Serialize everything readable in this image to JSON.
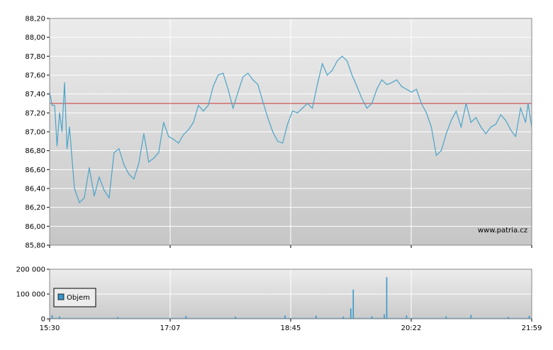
{
  "chart_data": [
    {
      "type": "line",
      "watermark": "www.patria.cz",
      "ylim": [
        85.8,
        88.2
      ],
      "yticks": [
        "88,20",
        "88,00",
        "87,80",
        "87,60",
        "87,40",
        "87,20",
        "87,00",
        "86,80",
        "86,60",
        "86,40",
        "86,20",
        "86,00",
        "85,80"
      ],
      "xticks": [
        "15:30",
        "17:07",
        "18:45",
        "20:22",
        "21:59"
      ],
      "reference_line": 87.3,
      "colors": {
        "line": "#4aa3c8",
        "reference": "#cc3333",
        "grid": "#ffffff"
      },
      "x_minutes": [
        0,
        2,
        4,
        6,
        8,
        10,
        12,
        14,
        16,
        20,
        24,
        28,
        32,
        36,
        40,
        44,
        48,
        52,
        56,
        60,
        64,
        68,
        72,
        76,
        80,
        84,
        88,
        92,
        96,
        100,
        104,
        108,
        112,
        116,
        120,
        124,
        128,
        132,
        136,
        140,
        144,
        148,
        152,
        156,
        160,
        164,
        168,
        172,
        176,
        180,
        184,
        188,
        192,
        196,
        200,
        204,
        208,
        212,
        216,
        220,
        224,
        228,
        232,
        236,
        240,
        244,
        248,
        252,
        256,
        260,
        264,
        268,
        272,
        276,
        280,
        284,
        288,
        292,
        296,
        300,
        304,
        308,
        312,
        316,
        320,
        324,
        328,
        332,
        336,
        340,
        344,
        348,
        352,
        356,
        360,
        364,
        368,
        372,
        376,
        380,
        384,
        386,
        389
      ],
      "series": [
        {
          "values": [
            87.42,
            87.28,
            87.28,
            86.85,
            87.2,
            87.0,
            87.52,
            86.82,
            87.05,
            86.4,
            86.25,
            86.3,
            86.62,
            86.32,
            86.52,
            86.38,
            86.3,
            86.78,
            86.82,
            86.65,
            86.55,
            86.5,
            86.67,
            86.98,
            86.68,
            86.72,
            86.78,
            87.1,
            86.95,
            86.92,
            86.88,
            86.97,
            87.02,
            87.1,
            87.28,
            87.22,
            87.28,
            87.48,
            87.6,
            87.62,
            87.45,
            87.25,
            87.42,
            87.58,
            87.62,
            87.55,
            87.5,
            87.32,
            87.15,
            87.0,
            86.9,
            86.88,
            87.08,
            87.22,
            87.2,
            87.25,
            87.3,
            87.25,
            87.5,
            87.72,
            87.6,
            87.65,
            87.75,
            87.8,
            87.75,
            87.6,
            87.48,
            87.35,
            87.25,
            87.3,
            87.45,
            87.55,
            87.5,
            87.52,
            87.55,
            87.48,
            87.45,
            87.42,
            87.45,
            87.3,
            87.2,
            87.05,
            86.75,
            86.8,
            86.98,
            87.12,
            87.22,
            87.05,
            87.3,
            87.1,
            87.15,
            87.05,
            86.98,
            87.05,
            87.08,
            87.18,
            87.12,
            87.02,
            86.95,
            87.25,
            87.1,
            87.3,
            87.05
          ]
        }
      ]
    },
    {
      "type": "bar",
      "ylim": [
        0,
        200000
      ],
      "yticks": [
        "200 000",
        "100 000",
        "0"
      ],
      "xticks": [
        "15:30",
        "17:07",
        "18:45",
        "20:22",
        "21:59"
      ],
      "series": [
        {
          "name": "Objem",
          "color": "#3a97c9"
        }
      ],
      "baseline_volume": 4000,
      "spikes": [
        {
          "x_minutes": 2,
          "value": 15000
        },
        {
          "x_minutes": 8,
          "value": 10000
        },
        {
          "x_minutes": 55,
          "value": 7000
        },
        {
          "x_minutes": 110,
          "value": 12000
        },
        {
          "x_minutes": 150,
          "value": 9000
        },
        {
          "x_minutes": 190,
          "value": 14000
        },
        {
          "x_minutes": 215,
          "value": 13000
        },
        {
          "x_minutes": 237,
          "value": 9000
        },
        {
          "x_minutes": 243,
          "value": 42000
        },
        {
          "x_minutes": 245,
          "value": 118000
        },
        {
          "x_minutes": 260,
          "value": 10000
        },
        {
          "x_minutes": 270,
          "value": 18000
        },
        {
          "x_minutes": 272,
          "value": 168000
        },
        {
          "x_minutes": 288,
          "value": 14000
        },
        {
          "x_minutes": 320,
          "value": 10000
        },
        {
          "x_minutes": 340,
          "value": 16000
        },
        {
          "x_minutes": 370,
          "value": 8000
        },
        {
          "x_minutes": 387,
          "value": 12000
        }
      ]
    }
  ]
}
